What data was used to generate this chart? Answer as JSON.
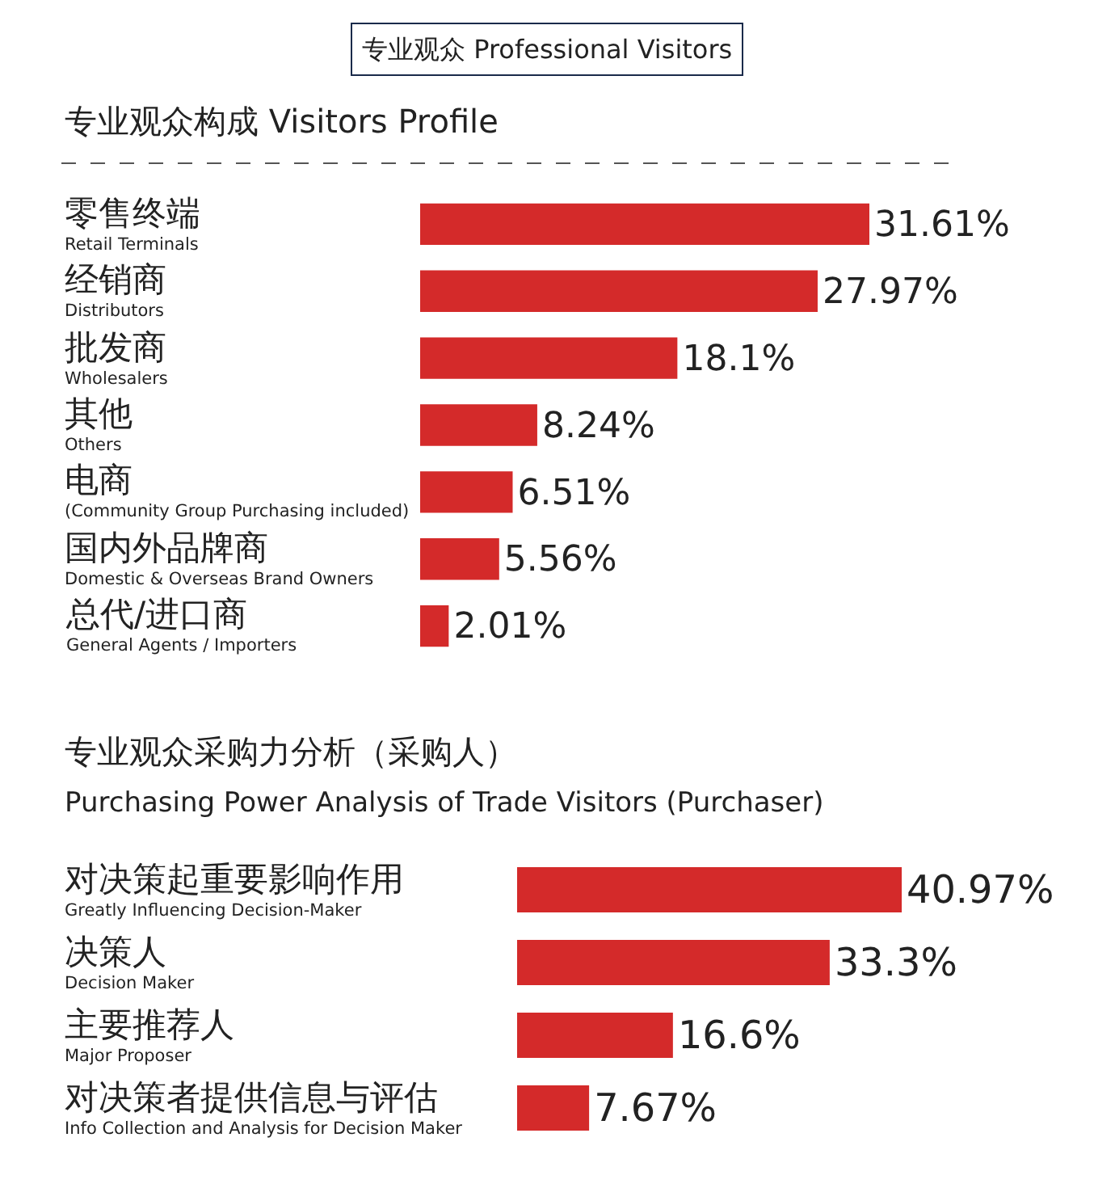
{
  "chart_data": [
    {
      "type": "bar",
      "orientation": "horizontal",
      "title": "专业观众构成 Visitors Profile",
      "annotations": [
        "专业观众 Professional Visitors"
      ],
      "categories": [
        "零售终端\nRetail Terminals",
        "经销商\nDistributors",
        "批发商\nWholesalers",
        "其他\nOthers",
        "电商\n(Community Group Purchasing included)",
        "国内外品牌商\nDomestic & Overseas Brand Owners",
        "总代/进口商\nGeneral Agents / Importers"
      ],
      "values": [
        31.61,
        27.97,
        18.1,
        8.24,
        6.51,
        5.56,
        2.01
      ],
      "value_labels": [
        "31.61%",
        "27.97%",
        "18.1%",
        "8.24%",
        "6.51%",
        "5.56%",
        "2.01%"
      ],
      "color": "#d42a2a"
    },
    {
      "type": "bar",
      "orientation": "horizontal",
      "title": "专业观众采购力分析（采购人）",
      "subtitle": "Purchasing Power Analysis of Trade Visitors (Purchaser)",
      "categories": [
        "对决策起重要影响作用\nGreatly Influencing Decision-Maker",
        "决策人\nDecision Maker",
        "主要推荐人\nMajor Proposer",
        "对决策者提供信息与评估\nInfo Collection and Analysis for Decision Maker"
      ],
      "values": [
        40.97,
        33.3,
        16.6,
        7.67
      ],
      "value_labels": [
        "40.97%",
        "33.3%",
        "16.6%",
        "7.67%"
      ],
      "color": "#d42a2a"
    }
  ]
}
